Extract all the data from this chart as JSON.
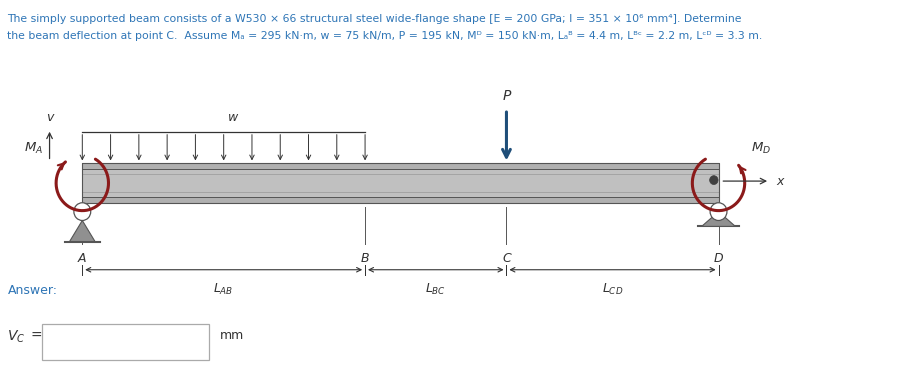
{
  "line1": "The simply supported beam consists of a W530 × 66 structural steel wide-flange shape [E = 200 GPa; I = 351 × 10⁶ mm⁴]. Determine",
  "line2": "the beam deflection at point C.  Assume Mₐ = 295 kN·m, w = 75 kN/m, P = 195 kN, Mᴰ = 150 kN·m, Lₐᴮ = 4.4 m, Lᴮᶜ = 2.2 m, Lᶜᴰ = 3.3 m.",
  "text_color": "#2e75b6",
  "dark_text": "#333333",
  "moment_color": "#8b1a1a",
  "beam_light": "#d4d4d4",
  "beam_mid": "#b0b0b0",
  "beam_dark": "#888888",
  "beam_darker": "#555555",
  "support_gray": "#909090",
  "arrow_blue": "#1f4e79",
  "LAB": 4.4,
  "LBC": 2.2,
  "LCD": 3.3,
  "answer_label": "Answer:",
  "vc_label": "V",
  "mm_label": "mm"
}
